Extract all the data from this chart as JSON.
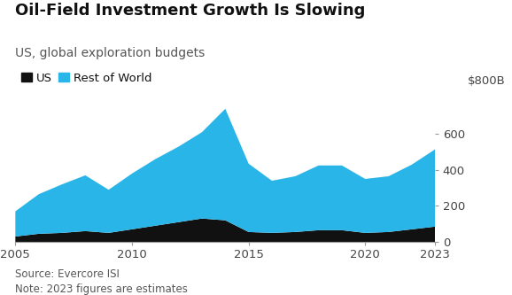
{
  "title": "Oil-Field Investment Growth Is Slowing",
  "subtitle": "US, global exploration budgets",
  "legend_labels": [
    "US",
    "Rest of World"
  ],
  "source_text": "Source: Evercore ISI",
  "note_text": "Note: 2023 figures are estimates",
  "ylabel_right": "$800B",
  "years": [
    2005,
    2006,
    2007,
    2008,
    2009,
    2010,
    2011,
    2012,
    2013,
    2014,
    2015,
    2016,
    2017,
    2018,
    2019,
    2020,
    2021,
    2022,
    2023
  ],
  "us_values": [
    30,
    45,
    50,
    60,
    50,
    70,
    90,
    110,
    130,
    120,
    55,
    50,
    55,
    65,
    65,
    50,
    55,
    70,
    85
  ],
  "row_values": [
    140,
    220,
    270,
    310,
    240,
    310,
    370,
    420,
    480,
    620,
    380,
    290,
    310,
    360,
    360,
    300,
    310,
    360,
    430
  ],
  "us_color": "#111111",
  "row_color": "#29b5e8",
  "background_color": "#ffffff",
  "yticks": [
    0,
    200,
    400,
    600
  ],
  "ytick_labels": [
    "0",
    "200",
    "400",
    "600"
  ],
  "ylim": [
    0,
    820
  ],
  "xlim": [
    2005,
    2023
  ],
  "xticks": [
    2005,
    2010,
    2015,
    2020,
    2023
  ],
  "xtick_labels": [
    "2005",
    "2010",
    "2015",
    "2020",
    "2023"
  ],
  "title_fontsize": 13,
  "subtitle_fontsize": 10,
  "legend_fontsize": 9.5,
  "tick_fontsize": 9.5,
  "source_fontsize": 8.5
}
